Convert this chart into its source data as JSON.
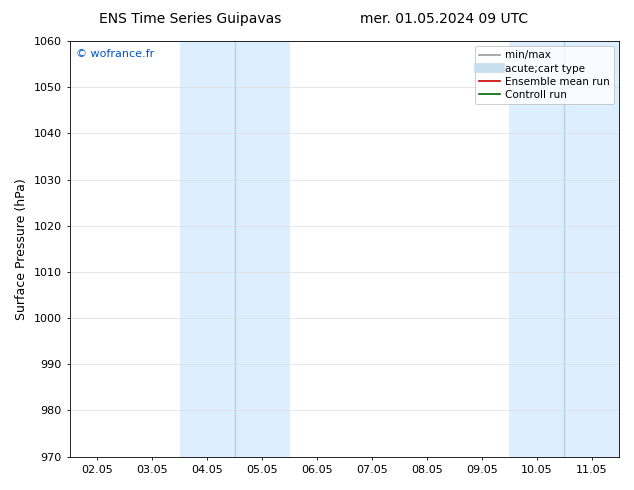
{
  "title_left": "ENS Time Series Guipavas",
  "title_right": "mer. 01.05.2024 09 UTC",
  "ylabel": "Surface Pressure (hPa)",
  "ylim": [
    970,
    1060
  ],
  "yticks": [
    970,
    980,
    990,
    1000,
    1010,
    1020,
    1030,
    1040,
    1050,
    1060
  ],
  "xtick_labels": [
    "02.05",
    "03.05",
    "04.05",
    "05.05",
    "06.05",
    "07.05",
    "08.05",
    "09.05",
    "10.05",
    "11.05"
  ],
  "xtick_positions": [
    0,
    1,
    2,
    3,
    4,
    5,
    6,
    7,
    8,
    9
  ],
  "xlim": [
    -0.5,
    9.5
  ],
  "shaded_regions": [
    {
      "xmin": 1.5,
      "xmax": 3.5,
      "color": "#ddeeff"
    },
    {
      "xmin": 7.5,
      "xmax": 9.5,
      "color": "#ddeeff"
    }
  ],
  "inner_lines": [
    {
      "x": 2.5,
      "color": "#b8d0e8"
    },
    {
      "x": 8.5,
      "color": "#b8d0e8"
    }
  ],
  "watermark_text": "© wofrance.fr",
  "watermark_color": "#0055cc",
  "legend_entries": [
    {
      "label": "min/max",
      "color": "#999999",
      "lw": 1.2,
      "style": "line"
    },
    {
      "label": "acute;cart type",
      "color": "#c8dff0",
      "lw": 7,
      "style": "line"
    },
    {
      "label": "Ensemble mean run",
      "color": "#cc0000",
      "lw": 1.2,
      "style": "line"
    },
    {
      "label": "Controll run",
      "color": "#006600",
      "lw": 1.2,
      "style": "line"
    }
  ],
  "background_color": "#ffffff",
  "grid_color": "#dddddd",
  "title_fontsize": 10,
  "tick_fontsize": 8,
  "ylabel_fontsize": 9,
  "legend_fontsize": 7.5
}
